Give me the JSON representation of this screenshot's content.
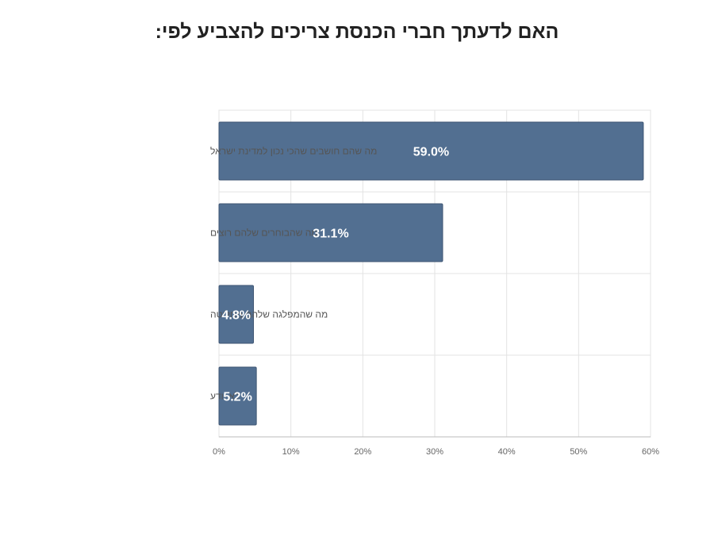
{
  "chart_data": {
    "type": "bar",
    "orientation": "horizontal",
    "title": "האם לדעתך חברי הכנסת צריכים להצביע לפי:",
    "categories": [
      "מה שהם חושבים שהכי נכון למדינת ישראל",
      "מה שהבוחרים שלהם רוצים",
      "מה שהמפלגה שלהם מחליטה",
      "לא יודע"
    ],
    "values": [
      59.0,
      31.1,
      4.8,
      5.2
    ],
    "data_labels": [
      "59.0%",
      "31.1%",
      "4.8%",
      "5.2%"
    ],
    "xlim": [
      0,
      60
    ],
    "x_ticks": [
      0,
      10,
      20,
      30,
      40,
      50,
      60
    ],
    "x_tick_labels": [
      "0%",
      "10%",
      "20%",
      "30%",
      "40%",
      "50%",
      "60%"
    ],
    "grid": true,
    "colors": {
      "bar": "#526f91",
      "bar_border": "#3f5673",
      "grid": "#e3e3e3",
      "axis": "#bbbbbb"
    }
  }
}
